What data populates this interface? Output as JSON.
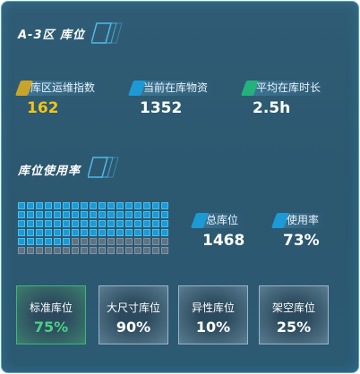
{
  "zone_title": "A-3区 库位",
  "stats": [
    {
      "label": "库区运维指数",
      "value": "162",
      "bar_color": "#c8a52a",
      "value_color": "#f2c318"
    },
    {
      "label": "当前在库物资",
      "value": "1352",
      "bar_color": "#1d9ad6",
      "value_color": "#ffffff"
    },
    {
      "label": "平均在库时长",
      "value": "2.5h",
      "bar_color": "#24b27c",
      "value_color": "#ffffff"
    }
  ],
  "usage_title": "库位使用率",
  "usage_stats": [
    {
      "label": "总库位",
      "value": "1468",
      "bar_color": "#1d9ad6"
    },
    {
      "label": "使用率",
      "value": "73%",
      "bar_color": "#1d9ad6"
    }
  ],
  "grid": {
    "used_fraction": 0.73
  },
  "cards": [
    {
      "label": "标准库位",
      "value": "75%"
    },
    {
      "label": "大尺寸库位",
      "value": "90%"
    },
    {
      "label": "异性库位",
      "value": "10%"
    },
    {
      "label": "架空库位",
      "value": "25%"
    }
  ]
}
